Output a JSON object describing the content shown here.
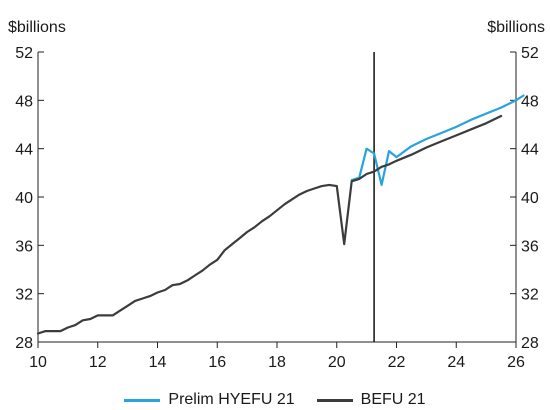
{
  "chart_data": {
    "type": "line",
    "left_unit_label": "$billions",
    "right_unit_label": "$billions",
    "xlim": [
      10,
      26
    ],
    "ylim": [
      28,
      52
    ],
    "x_ticks": [
      10,
      12,
      14,
      16,
      18,
      20,
      22,
      24,
      26
    ],
    "x_tick_labels": [
      "10",
      "12",
      "14",
      "16",
      "18",
      "20",
      "22",
      "24",
      "26"
    ],
    "y_ticks": [
      28,
      32,
      36,
      40,
      44,
      48,
      52
    ],
    "y_tick_labels": [
      "28",
      "32",
      "36",
      "40",
      "44",
      "48",
      "52"
    ],
    "vertical_marker_x": 21.25,
    "legend_position": "bottom",
    "colors": {
      "prelim": "#29a3dc",
      "befu": "#3c3c3c",
      "axis": "#222222"
    },
    "series": [
      {
        "name": "Prelim HYEFU 21",
        "color": "#29a3dc",
        "points": [
          [
            20.5,
            41.4
          ],
          [
            20.75,
            41.6
          ],
          [
            21.0,
            44.0
          ],
          [
            21.25,
            43.6
          ],
          [
            21.5,
            41.0
          ],
          [
            21.75,
            43.8
          ],
          [
            22.0,
            43.3
          ],
          [
            22.5,
            44.2
          ],
          [
            23.0,
            44.8
          ],
          [
            23.5,
            45.3
          ],
          [
            24.0,
            45.8
          ],
          [
            24.5,
            46.4
          ],
          [
            25.0,
            46.9
          ],
          [
            25.5,
            47.4
          ],
          [
            26.0,
            48.0
          ],
          [
            26.25,
            48.4
          ]
        ]
      },
      {
        "name": "BEFU 21",
        "color": "#3c3c3c",
        "points": [
          [
            10.0,
            28.7
          ],
          [
            10.25,
            28.9
          ],
          [
            10.5,
            28.9
          ],
          [
            10.75,
            28.9
          ],
          [
            11.0,
            29.2
          ],
          [
            11.25,
            29.4
          ],
          [
            11.5,
            29.8
          ],
          [
            11.75,
            29.9
          ],
          [
            12.0,
            30.2
          ],
          [
            12.25,
            30.2
          ],
          [
            12.5,
            30.2
          ],
          [
            12.75,
            30.6
          ],
          [
            13.0,
            31.0
          ],
          [
            13.25,
            31.4
          ],
          [
            13.5,
            31.6
          ],
          [
            13.75,
            31.8
          ],
          [
            14.0,
            32.1
          ],
          [
            14.25,
            32.3
          ],
          [
            14.5,
            32.7
          ],
          [
            14.75,
            32.8
          ],
          [
            15.0,
            33.1
          ],
          [
            15.25,
            33.5
          ],
          [
            15.5,
            33.9
          ],
          [
            15.75,
            34.4
          ],
          [
            16.0,
            34.8
          ],
          [
            16.25,
            35.6
          ],
          [
            16.5,
            36.1
          ],
          [
            16.75,
            36.6
          ],
          [
            17.0,
            37.1
          ],
          [
            17.25,
            37.5
          ],
          [
            17.5,
            38.0
          ],
          [
            17.75,
            38.4
          ],
          [
            18.0,
            38.9
          ],
          [
            18.25,
            39.4
          ],
          [
            18.5,
            39.8
          ],
          [
            18.75,
            40.2
          ],
          [
            19.0,
            40.5
          ],
          [
            19.25,
            40.7
          ],
          [
            19.5,
            40.9
          ],
          [
            19.75,
            41.0
          ],
          [
            20.0,
            40.9
          ],
          [
            20.25,
            36.1
          ],
          [
            20.5,
            41.3
          ],
          [
            20.75,
            41.5
          ],
          [
            21.0,
            41.9
          ],
          [
            21.25,
            42.1
          ],
          [
            21.5,
            42.5
          ],
          [
            21.75,
            42.7
          ],
          [
            22.0,
            43.0
          ],
          [
            22.5,
            43.5
          ],
          [
            23.0,
            44.1
          ],
          [
            23.5,
            44.6
          ],
          [
            24.0,
            45.1
          ],
          [
            24.5,
            45.6
          ],
          [
            25.0,
            46.1
          ],
          [
            25.5,
            46.7
          ]
        ]
      }
    ]
  }
}
